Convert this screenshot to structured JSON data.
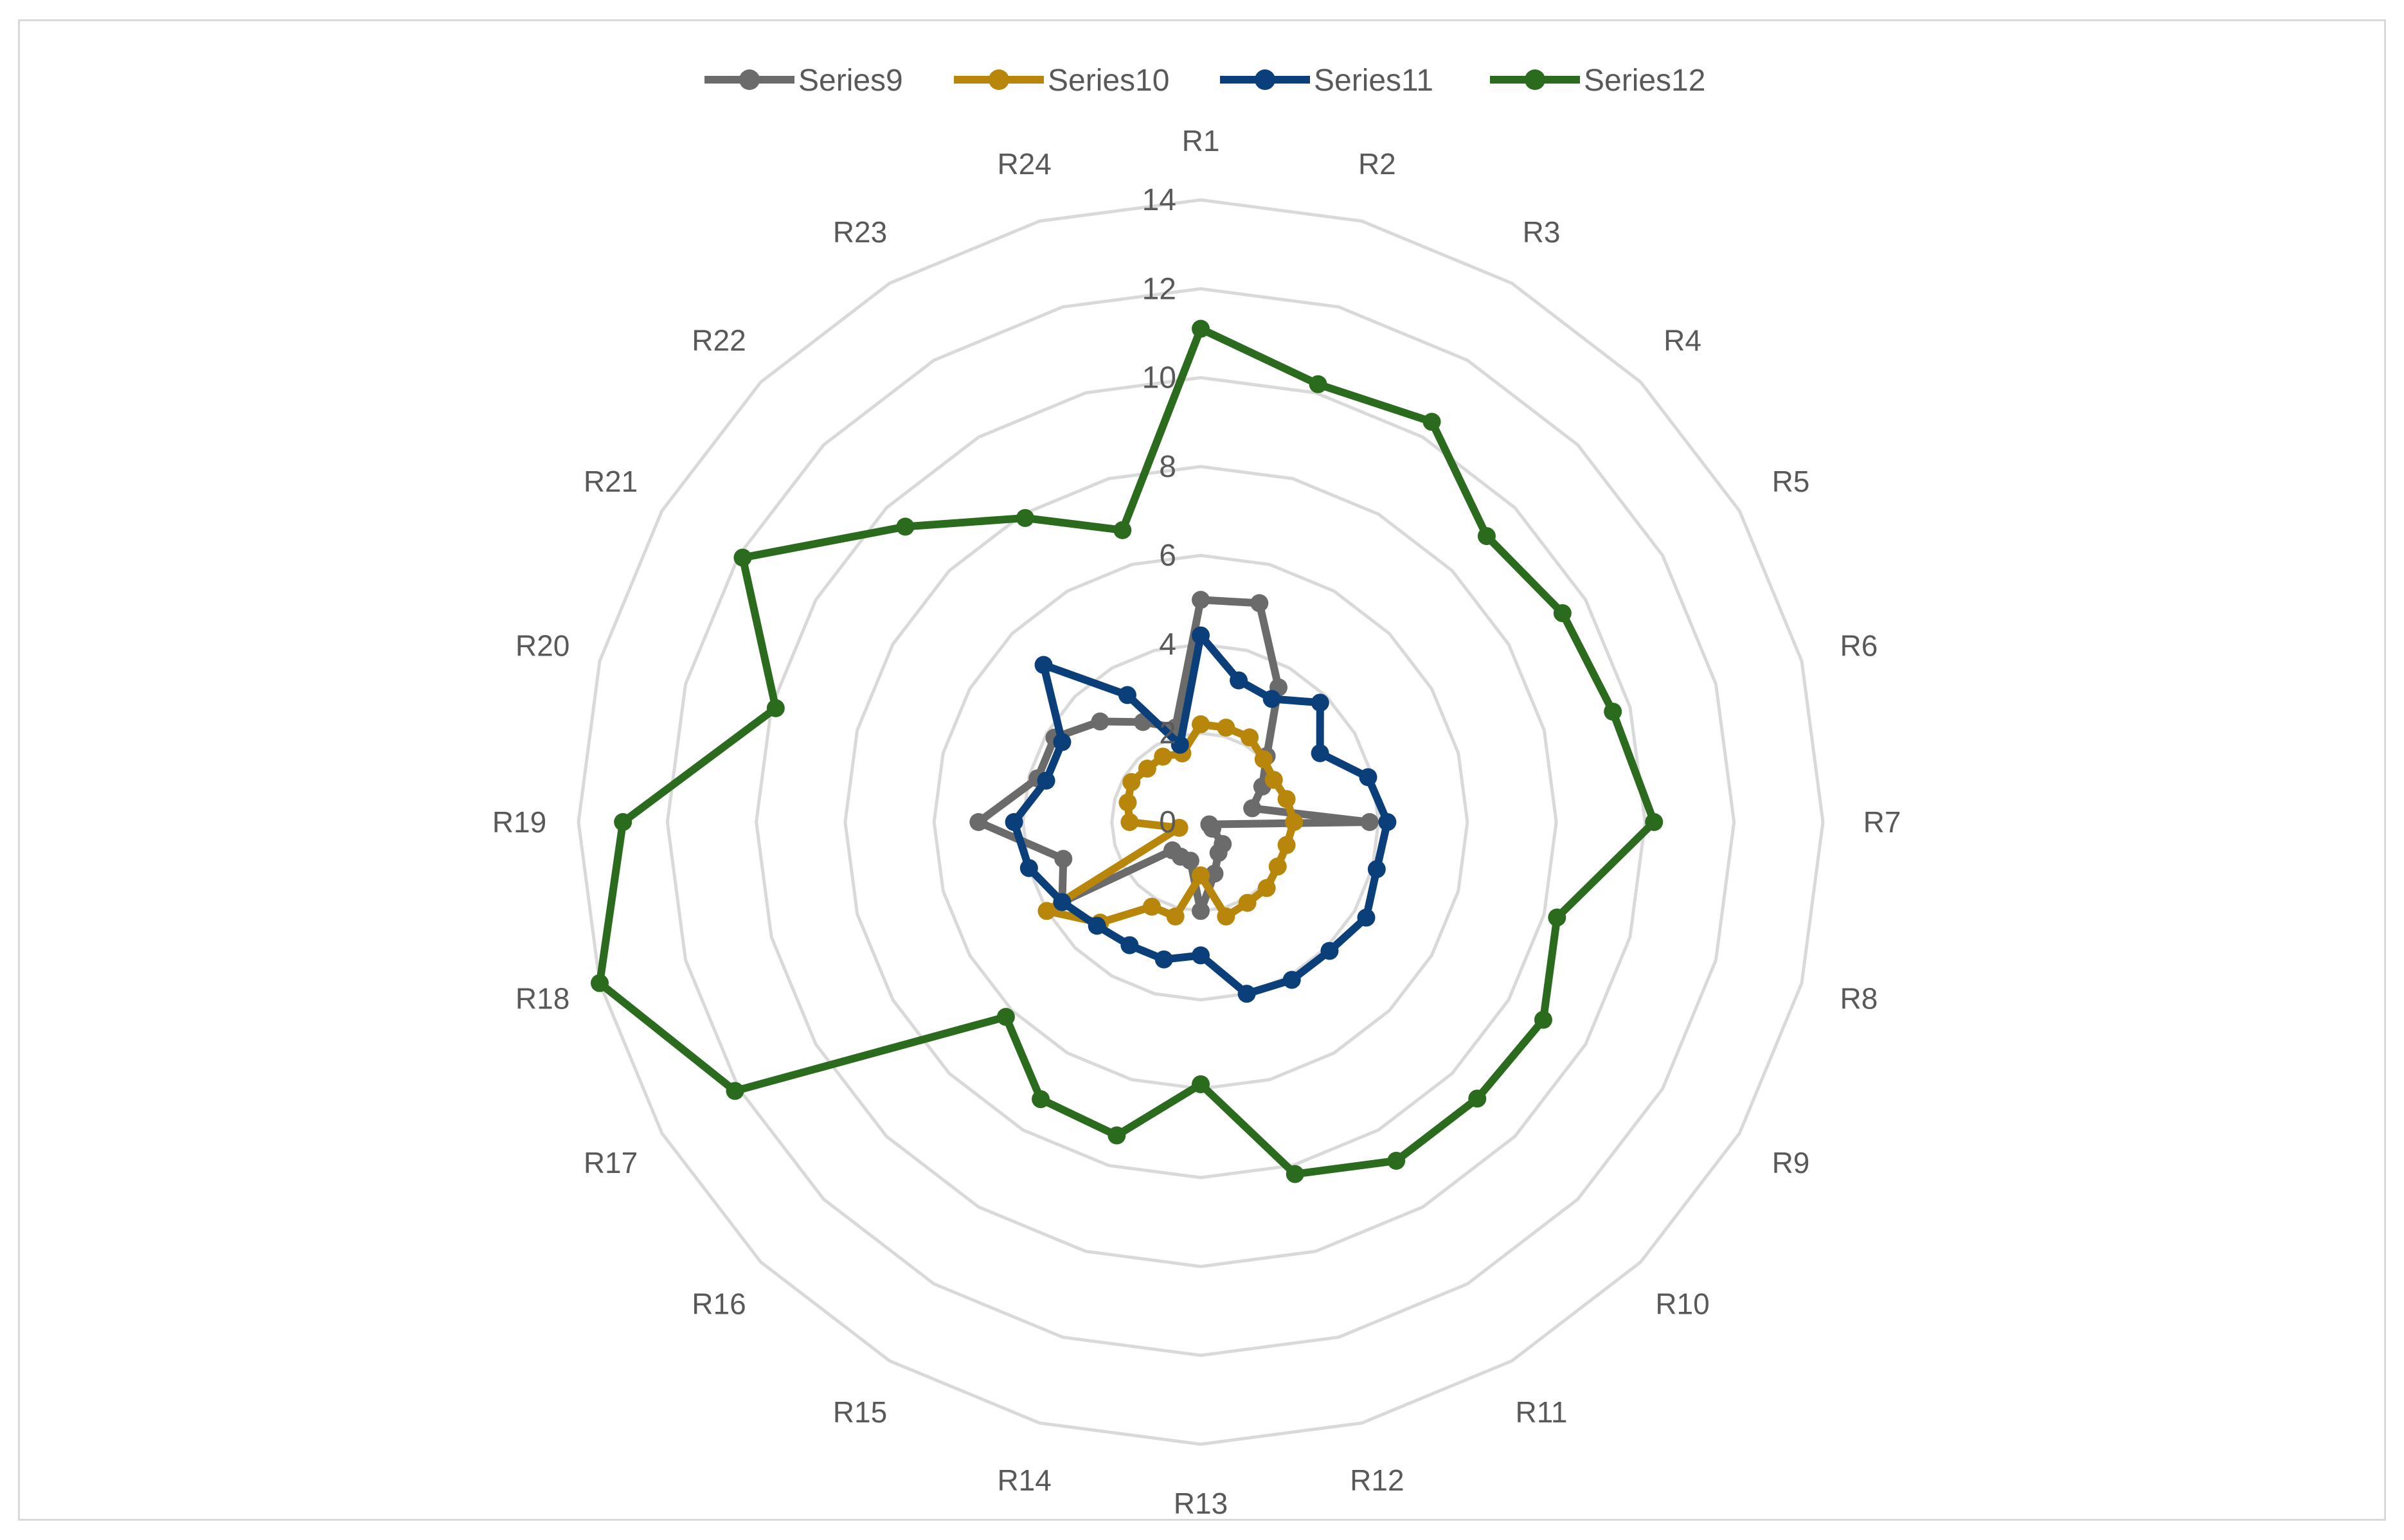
{
  "chart_data": {
    "type": "radar",
    "categories": [
      "R1",
      "R2",
      "R3",
      "R4",
      "R5",
      "R6",
      "R7",
      "R8",
      "R9",
      "R10",
      "R11",
      "R12",
      "R13",
      "R14",
      "R15",
      "R16",
      "R17",
      "R18",
      "R19",
      "R20",
      "R21",
      "R22",
      "R23",
      "R24"
    ],
    "rlim": [
      0,
      14
    ],
    "ticks": [
      "0",
      "2",
      "4",
      "6",
      "8",
      "10",
      "12",
      "14"
    ],
    "grid": true,
    "legend_position": "top",
    "series": [
      {
        "name": "Series9",
        "color": "#6b6b6b",
        "values": [
          5.0,
          5.1,
          3.5,
          2.1,
          1.6,
          1.2,
          3.8,
          0.2,
          0.3,
          0.7,
          0.8,
          1.2,
          2.0,
          0.9,
          0.9,
          0.9,
          3.6,
          3.2,
          5.0,
          3.8,
          3.8,
          3.2,
          2.6,
          2.2
        ]
      },
      {
        "name": "Series10",
        "color": "#b8860b",
        "values": [
          2.2,
          2.2,
          2.2,
          2.0,
          1.9,
          2.0,
          2.1,
          2.0,
          2.0,
          2.1,
          2.1,
          2.2,
          1.2,
          2.2,
          2.2,
          3.2,
          4.0,
          0.5,
          1.6,
          1.7,
          1.8,
          1.7,
          1.7,
          1.6
        ]
      },
      {
        "name": "Series11",
        "color": "#0b3f7a",
        "values": [
          4.2,
          3.3,
          3.2,
          3.8,
          3.1,
          3.9,
          4.2,
          4.1,
          4.3,
          4.1,
          4.1,
          4.0,
          3.0,
          3.2,
          3.2,
          3.3,
          3.6,
          4.0,
          4.2,
          3.6,
          3.6,
          5.0,
          3.3,
          1.8
        ]
      },
      {
        "name": "Series12",
        "color": "#2a6b1e",
        "values": [
          11.1,
          10.2,
          10.4,
          9.1,
          9.4,
          9.6,
          10.2,
          8.3,
          8.9,
          8.8,
          8.8,
          8.2,
          5.9,
          7.3,
          7.2,
          6.2,
          12.1,
          14.0,
          13.0,
          9.9,
          11.9,
          9.4,
          7.9,
          6.8
        ]
      }
    ]
  }
}
